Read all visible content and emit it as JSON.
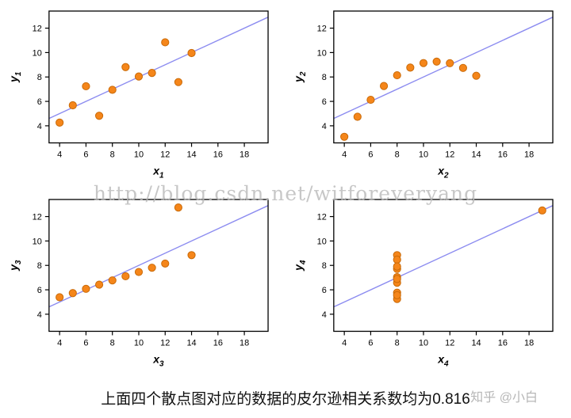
{
  "watermark": "http://blog.csdn.net/witforeveryang",
  "caption": "上面四个散点图对应的数据的皮尔逊相关系数均为0.816",
  "watermark2": "知乎 @小白",
  "colors": {
    "point_fill": "#F5861A",
    "point_edge": "#C96A08",
    "regression_line": "#8C8CF0",
    "axis": "#000000",
    "tick_label": "#000000"
  },
  "chart_data": [
    {
      "type": "scatter",
      "xlabel": {
        "base": "x",
        "sub": "1"
      },
      "ylabel": {
        "base": "y",
        "sub": "1"
      },
      "x": [
        10,
        8,
        13,
        9,
        11,
        14,
        6,
        4,
        12,
        7,
        5
      ],
      "y": [
        8.04,
        6.95,
        7.58,
        8.81,
        8.33,
        9.96,
        7.24,
        4.26,
        10.84,
        4.82,
        5.68
      ],
      "xticks": [
        4,
        6,
        8,
        10,
        12,
        14,
        16,
        18
      ],
      "yticks": [
        4,
        6,
        8,
        10,
        12
      ],
      "xlim": [
        3.2,
        19.8
      ],
      "ylim": [
        2.6,
        13.4
      ],
      "regression": {
        "intercept": 3.0,
        "slope": 0.5
      },
      "grid": false,
      "legend": false
    },
    {
      "type": "scatter",
      "xlabel": {
        "base": "x",
        "sub": "2"
      },
      "ylabel": {
        "base": "y",
        "sub": "2"
      },
      "x": [
        10,
        8,
        13,
        9,
        11,
        14,
        6,
        4,
        12,
        7,
        5
      ],
      "y": [
        9.14,
        8.14,
        8.74,
        8.77,
        9.26,
        8.1,
        6.13,
        3.1,
        9.13,
        7.26,
        4.74
      ],
      "xticks": [
        4,
        6,
        8,
        10,
        12,
        14,
        16,
        18
      ],
      "yticks": [
        4,
        6,
        8,
        10,
        12
      ],
      "xlim": [
        3.2,
        19.8
      ],
      "ylim": [
        2.6,
        13.4
      ],
      "regression": {
        "intercept": 3.0,
        "slope": 0.5
      },
      "grid": false,
      "legend": false
    },
    {
      "type": "scatter",
      "xlabel": {
        "base": "x",
        "sub": "3"
      },
      "ylabel": {
        "base": "y",
        "sub": "3"
      },
      "x": [
        10,
        8,
        13,
        9,
        11,
        14,
        6,
        4,
        12,
        7,
        5
      ],
      "y": [
        7.46,
        6.77,
        12.74,
        7.11,
        7.81,
        8.84,
        6.08,
        5.39,
        8.15,
        6.42,
        5.73
      ],
      "xticks": [
        4,
        6,
        8,
        10,
        12,
        14,
        16,
        18
      ],
      "yticks": [
        4,
        6,
        8,
        10,
        12
      ],
      "xlim": [
        3.2,
        19.8
      ],
      "ylim": [
        2.6,
        13.4
      ],
      "regression": {
        "intercept": 3.0,
        "slope": 0.5
      },
      "grid": false,
      "legend": false
    },
    {
      "type": "scatter",
      "xlabel": {
        "base": "x",
        "sub": "4"
      },
      "ylabel": {
        "base": "y",
        "sub": "4"
      },
      "x": [
        8,
        8,
        8,
        8,
        8,
        8,
        8,
        19,
        8,
        8,
        8
      ],
      "y": [
        6.58,
        5.76,
        7.71,
        8.84,
        8.47,
        7.04,
        5.25,
        12.5,
        5.56,
        7.91,
        6.89
      ],
      "xticks": [
        4,
        6,
        8,
        10,
        12,
        14,
        16,
        18
      ],
      "yticks": [
        4,
        6,
        8,
        10,
        12
      ],
      "xlim": [
        3.2,
        19.8
      ],
      "ylim": [
        2.6,
        13.4
      ],
      "regression": {
        "intercept": 3.0,
        "slope": 0.5
      },
      "grid": false,
      "legend": false
    }
  ]
}
